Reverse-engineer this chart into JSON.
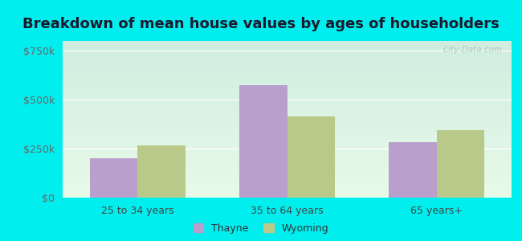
{
  "title": "Breakdown of mean house values by ages of householders",
  "categories": [
    "25 to 34 years",
    "35 to 64 years",
    "65 years+"
  ],
  "thayne_values": [
    200000,
    575000,
    285000
  ],
  "wyoming_values": [
    268000,
    415000,
    345000
  ],
  "thayne_color": "#b89fcc",
  "wyoming_color": "#b8c98a",
  "bar_width": 0.32,
  "ylim": [
    0,
    800000
  ],
  "yticks": [
    0,
    250000,
    500000,
    750000
  ],
  "ytick_labels": [
    "$0",
    "$250k",
    "$500k",
    "$750k"
  ],
  "legend_labels": [
    "Thayne",
    "Wyoming"
  ],
  "outer_bg": "#00eeee",
  "plot_bg_top": "#d0ede0",
  "plot_bg_bottom": "#e8fae8",
  "title_fontsize": 13,
  "tick_fontsize": 9,
  "watermark": "City-Data.com",
  "grid_color": "#ccddcc"
}
